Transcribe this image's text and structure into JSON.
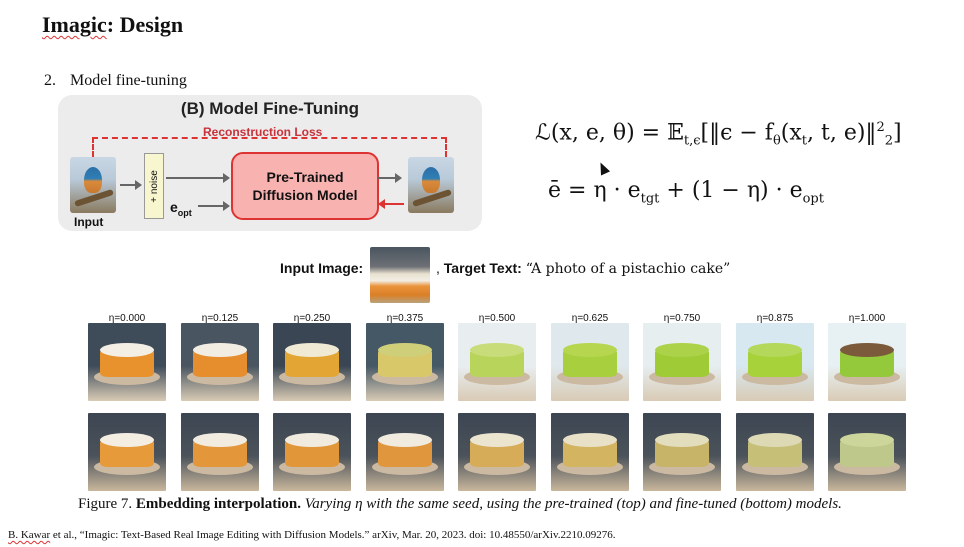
{
  "slide": {
    "title_brand": "Imagic",
    "title_sep": ": ",
    "title_rest": "Design",
    "item_number": "2.",
    "item_text": "Model fine-tuning"
  },
  "diagram": {
    "title": "(B) Model Fine-Tuning",
    "reconstruction_loss": "Reconstruction Loss",
    "noise": "+ noise",
    "e_opt_base": "e",
    "e_opt_sub": "opt",
    "model_line1": "Pre-Trained",
    "model_line2": "Diffusion Model",
    "input_label": "Input",
    "colors": {
      "panel": "#ececec",
      "accent_red": "#d33333",
      "model_fill": "#f8b3b1",
      "noise_fill": "#f8f6cf"
    }
  },
  "equations": {
    "eq1": "ℒ(x, e, θ) = 𝔼",
    "eq1_sub": "t,ϵ",
    "eq1_rhs": "[‖ϵ − f",
    "eq1_theta": "θ",
    "eq1_args": "(x",
    "eq1_t": "t",
    "eq1_tail": ", t, e)‖",
    "eq1_sup": "2",
    "eq1_sub2": "2",
    "eq1_close": "]",
    "eq2_lhs": "ē = η · e",
    "eq2_tgt": "tgt",
    "eq2_mid": " + (1 − η) · e",
    "eq2_opt": "opt"
  },
  "input_line": {
    "image_label": "Input Image:",
    "comma": ",",
    "target_label": "Target Text:",
    "target_text": "“A photo of a pistachio cake”"
  },
  "grid": {
    "etas": [
      "η=0.000",
      "η=0.125",
      "η=0.250",
      "η=0.375",
      "η=0.500",
      "η=0.625",
      "η=0.750",
      "η=0.875",
      "η=1.000"
    ]
  },
  "caption": {
    "prefix": "Figure 7. ",
    "bold": "Embedding interpolation.",
    "italic": " Varying η with the same seed, using the pre-trained (top) and fine-tuned (bottom) models."
  },
  "reference": {
    "author": "B. Kawar",
    "rest": " et al., “Imagic: Text-Based Real Image Editing with Diffusion Models.” arXiv, Mar. 20, 2023. doi: 10.48550/arXiv.2210.09276."
  }
}
